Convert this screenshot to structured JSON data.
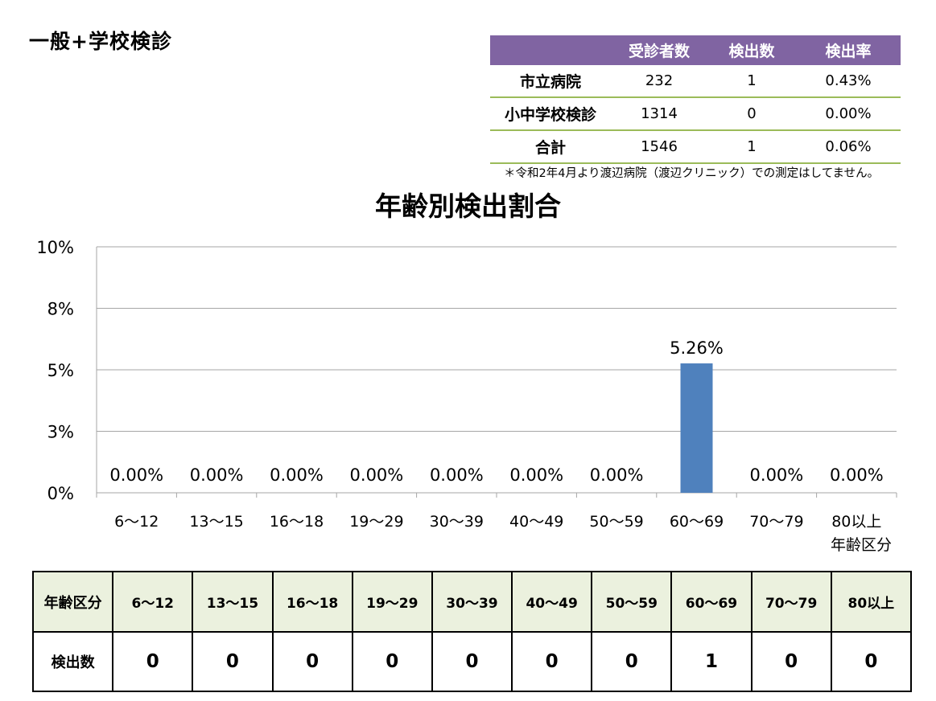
{
  "page_title": "一般+学校検診",
  "summary_table": {
    "headers": [
      "",
      "受診者数",
      "検出数",
      "検出率"
    ],
    "rows": [
      {
        "name": "市立病院",
        "examinees": "232",
        "detected": "1",
        "rate": "0.43%"
      },
      {
        "name": "小中学校検診",
        "examinees": "1314",
        "detected": "0",
        "rate": "0.00%"
      },
      {
        "name": "合計",
        "examinees": "1546",
        "detected": "1",
        "rate": "0.06%"
      }
    ]
  },
  "note": "＊令和2年4月より渡辺病院（渡辺クリニック）での測定はしてません。",
  "chart_data": {
    "type": "bar",
    "title": "年齢別検出割合",
    "xlabel": "年齢区分",
    "ylabel": "",
    "categories": [
      "6〜12",
      "13〜15",
      "16〜18",
      "19〜29",
      "30〜39",
      "40〜49",
      "50〜59",
      "60〜69",
      "70〜79",
      "80以上"
    ],
    "values": [
      0,
      0,
      0,
      0,
      0,
      0,
      0,
      5.26,
      0,
      0
    ],
    "data_labels": [
      "0.00%",
      "0.00%",
      "0.00%",
      "0.00%",
      "0.00%",
      "0.00%",
      "0.00%",
      "5.26%",
      "0.00%",
      "0.00%"
    ],
    "ylim": [
      0,
      10
    ],
    "yticks": [
      0,
      2.5,
      5,
      7.5,
      10
    ],
    "ytick_labels": [
      "0%",
      "3%",
      "5%",
      "8%",
      "10%"
    ],
    "grid": true,
    "bar_color": "#4f81bd"
  },
  "count_table": {
    "header_label": "年齢区分",
    "row_label": "検出数",
    "categories": [
      "6〜12",
      "13〜15",
      "16〜18",
      "19〜29",
      "30〜39",
      "40〜49",
      "50〜59",
      "60〜69",
      "70〜79",
      "80以上"
    ],
    "counts": [
      "0",
      "0",
      "0",
      "0",
      "0",
      "0",
      "0",
      "1",
      "0",
      "0"
    ]
  }
}
